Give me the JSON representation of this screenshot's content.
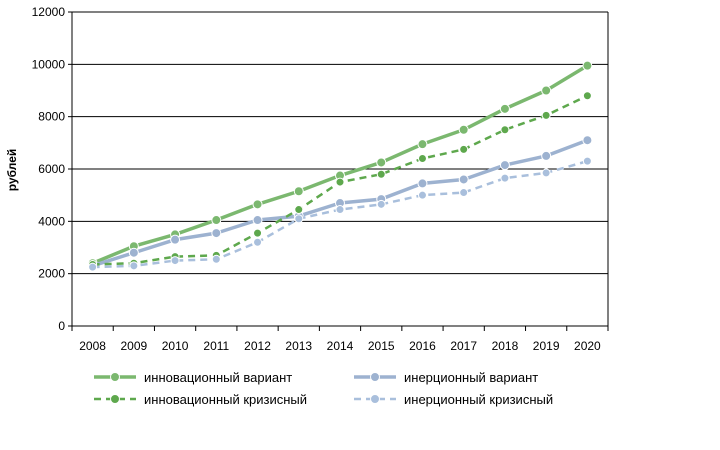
{
  "chart_data": {
    "type": "line",
    "title": "",
    "xlabel": "",
    "ylabel": "рублей",
    "ylim": [
      0,
      12000
    ],
    "yticks": [
      0,
      2000,
      4000,
      6000,
      8000,
      10000,
      12000
    ],
    "grid": true,
    "legend_position": "bottom",
    "categories": [
      "2008",
      "2009",
      "2010",
      "2011",
      "2012",
      "2013",
      "2014",
      "2015",
      "2016",
      "2017",
      "2018",
      "2019",
      "2020"
    ],
    "series": [
      {
        "name": "инновационный вариант",
        "color": "#7bb86f",
        "style": "solid",
        "values": [
          2400,
          3050,
          3500,
          4050,
          4650,
          5150,
          5750,
          6250,
          6950,
          7500,
          8300,
          9000,
          9950
        ]
      },
      {
        "name": "инерционный вариант",
        "color": "#9db2d0",
        "style": "solid",
        "values": [
          2300,
          2800,
          3300,
          3550,
          4050,
          4200,
          4700,
          4850,
          5450,
          5600,
          6150,
          6500,
          7100
        ]
      },
      {
        "name": "инновационный кризисный",
        "color": "#5ea84d",
        "style": "dashed",
        "values": [
          2350,
          2400,
          2650,
          2700,
          3550,
          4450,
          5500,
          5800,
          6400,
          6750,
          7500,
          8050,
          8800
        ]
      },
      {
        "name": "инерционный кризисный",
        "color": "#a9bfdc",
        "style": "dashed",
        "values": [
          2250,
          2300,
          2500,
          2550,
          3200,
          4100,
          4450,
          4650,
          5000,
          5100,
          5650,
          5850,
          6300
        ]
      }
    ]
  }
}
